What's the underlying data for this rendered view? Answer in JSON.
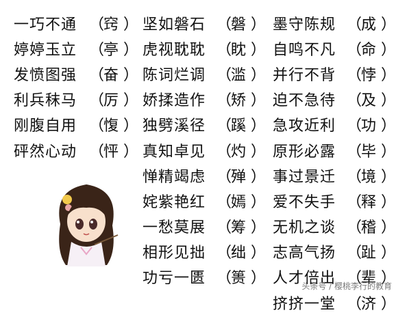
{
  "columns": [
    {
      "rows": [
        {
          "idiom": "一巧不通",
          "answer": "窍"
        },
        {
          "idiom": "婷婷玉立",
          "answer": "亭"
        },
        {
          "idiom": "发愤图强",
          "answer": "奋"
        },
        {
          "idiom": "利兵秣马",
          "answer": "厉"
        },
        {
          "idiom": "刚腹自用",
          "answer": "愎"
        },
        {
          "idiom": "砰然心动",
          "answer": "怦"
        }
      ]
    },
    {
      "rows": [
        {
          "idiom": "坚如磐石",
          "answer": "磐"
        },
        {
          "idiom": "虎视耽耽",
          "answer": "眈"
        },
        {
          "idiom": "陈词烂调",
          "answer": "滥"
        },
        {
          "idiom": "娇揉造作",
          "answer": "矫"
        },
        {
          "idiom": "独劈溪径",
          "answer": "蹊"
        },
        {
          "idiom": "真知卓见",
          "answer": "灼"
        },
        {
          "idiom": "惮精竭虑",
          "answer": "殚"
        },
        {
          "idiom": "姹紫艳红",
          "answer": "嫣"
        },
        {
          "idiom": "一愁莫展",
          "answer": "筹"
        },
        {
          "idiom": "相形见拙",
          "answer": "绌"
        },
        {
          "idiom": "功亏一匮",
          "answer": "篑"
        }
      ]
    },
    {
      "rows": [
        {
          "idiom": "墨守陈规",
          "answer": "成"
        },
        {
          "idiom": "自鸣不凡",
          "answer": "命"
        },
        {
          "idiom": "并行不背",
          "answer": "悖"
        },
        {
          "idiom": "迫不急待",
          "answer": "及"
        },
        {
          "idiom": "急攻近利",
          "answer": "功"
        },
        {
          "idiom": "原形必露",
          "answer": "毕"
        },
        {
          "idiom": "事过景迁",
          "answer": "境"
        },
        {
          "idiom": "爱不失手",
          "answer": "释"
        },
        {
          "idiom": "无机之谈",
          "answer": "稽"
        },
        {
          "idiom": "志高气扬",
          "answer": "趾"
        },
        {
          "idiom": "人才倍出",
          "answer": "辈"
        },
        {
          "idiom": "挤挤一堂",
          "answer": "济"
        }
      ]
    }
  ],
  "bracket_open": "（",
  "bracket_close": "）",
  "watermark": "头条号 / 樱桃李行的教育",
  "illustration": {
    "icon": "cartoon-girl-icon"
  },
  "colors": {
    "text": "#111111",
    "background": "#ffffff",
    "watermark": "#7a7a7a"
  }
}
